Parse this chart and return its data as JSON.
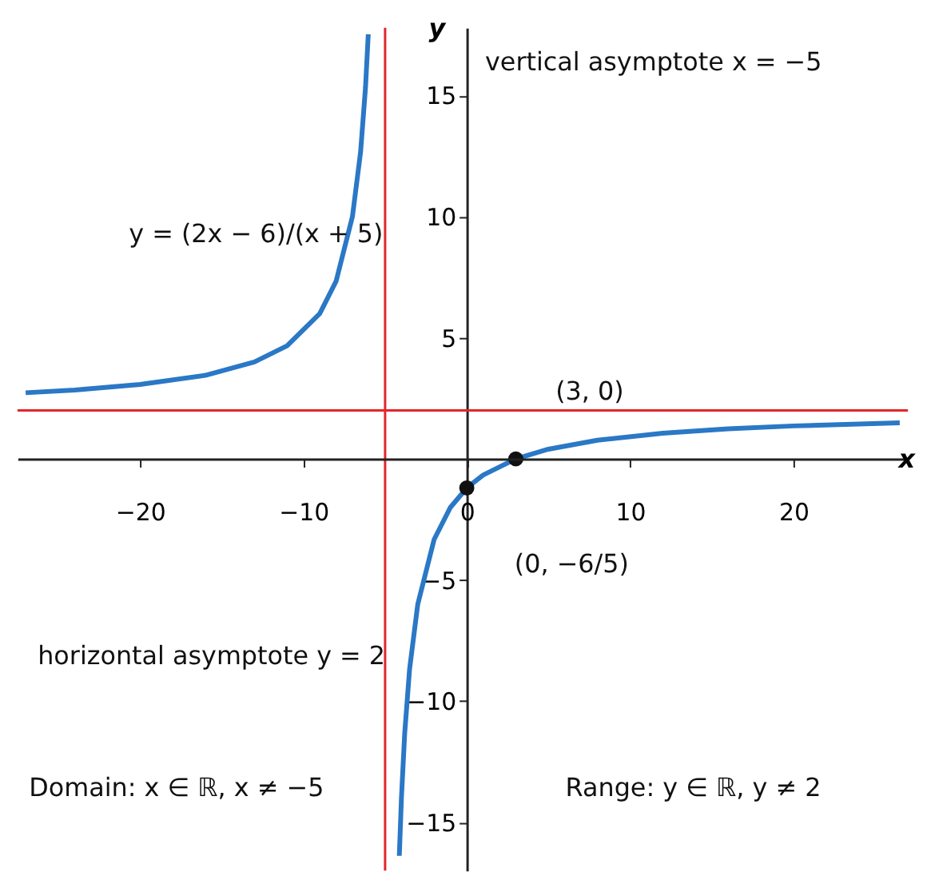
{
  "chart_data": {
    "type": "line",
    "xlabel": "x",
    "ylabel": "y",
    "xlim": [
      -27.5,
      27
    ],
    "ylim": [
      -17,
      17.8
    ],
    "xticks": [
      -20,
      -10,
      0,
      10,
      20
    ],
    "yticks": [
      -15,
      -10,
      -5,
      5,
      10,
      15
    ],
    "grid": false,
    "line_style": "solid",
    "series": [
      {
        "color": "#2a78c6",
        "x": [
          -27,
          -24,
          -20,
          -16,
          -13,
          -11,
          -9,
          -8,
          -7,
          -6.5,
          -6.2,
          -6.03
        ],
        "values": [
          2.73,
          2.84,
          3.07,
          3.45,
          4,
          4.67,
          6,
          7.33,
          10,
          12.67,
          15.33,
          17.53
        ]
      },
      {
        "color": "#2a78c6",
        "x": [
          -4.13,
          -4,
          -3.8,
          -3.5,
          -3,
          -2,
          -1,
          0,
          1,
          3,
          5,
          8,
          12,
          16,
          20,
          26.5
        ],
        "values": [
          -16.39,
          -14,
          -11.33,
          -8.67,
          -6,
          -3.33,
          -2,
          -1.2,
          -0.67,
          0,
          0.4,
          0.77,
          1.06,
          1.24,
          1.36,
          1.49
        ]
      },
      {
        "type": "scatter",
        "color": "#111111",
        "x": [
          0,
          3
        ],
        "values": [
          -1.2,
          0
        ]
      }
    ],
    "ref_lines": [
      {
        "axis": "x",
        "value": -5,
        "color": "#e2262b"
      },
      {
        "axis": "y",
        "value": 2,
        "color": "#e2262b"
      }
    ],
    "annotations": [
      "vertical asymptote x = −5",
      "y = (2x − 6)/(x + 5)",
      "horizontal asymptote y = 2",
      {
        "text": "(3, 0)",
        "x": 3,
        "y": 0
      },
      {
        "text": "(0, −6/5)",
        "x": 0,
        "y": -1.2
      },
      "Domain: x ∈ ℝ, x ≠ −5",
      "Range: y ∈ ℝ, y ≠ 2"
    ]
  }
}
